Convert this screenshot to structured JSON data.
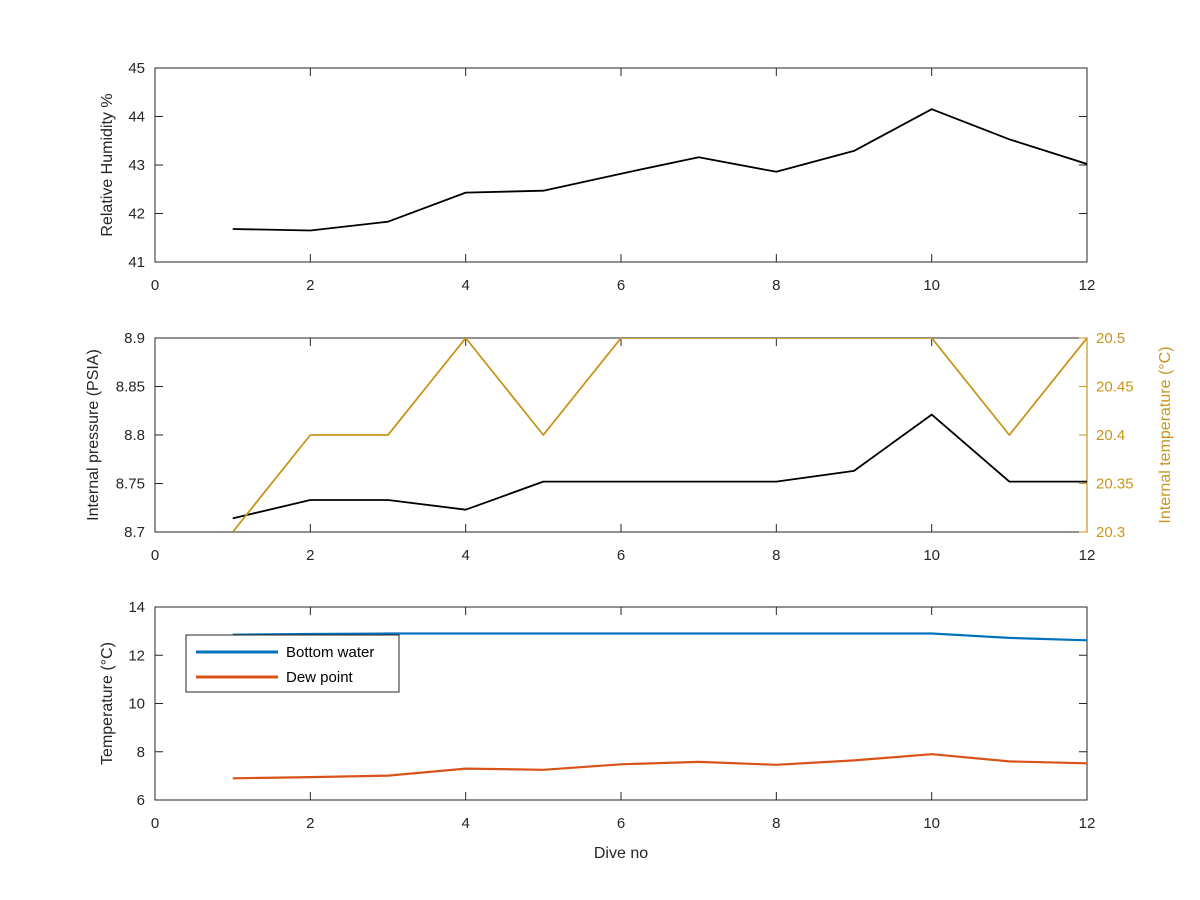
{
  "chart_data": [
    {
      "type": "line",
      "xlabel": "",
      "ylabel": "Relative Humidity %",
      "xlim": [
        0,
        12
      ],
      "ylim": [
        41,
        45
      ],
      "xticks": [
        "0",
        "2",
        "4",
        "6",
        "8",
        "10",
        "12"
      ],
      "yticks": [
        "41",
        "42",
        "43",
        "44",
        "45"
      ],
      "grid": false,
      "series": [
        {
          "color": "#000000",
          "x": [
            1,
            2,
            3,
            4,
            5,
            6,
            7,
            8,
            9,
            10,
            11,
            12
          ],
          "y": [
            41.68,
            41.65,
            41.83,
            42.43,
            42.47,
            42.82,
            43.16,
            42.86,
            43.29,
            44.15,
            43.53,
            43.02
          ]
        }
      ]
    },
    {
      "type": "line",
      "xlabel": "",
      "ylabel": "Internal pressure (PSIA)",
      "y2label": "Internal temperature (°C)",
      "xlim": [
        0,
        12
      ],
      "ylim": [
        8.7,
        8.9
      ],
      "y2lim": [
        20.3,
        20.5
      ],
      "xticks": [
        "0",
        "2",
        "4",
        "6",
        "8",
        "10",
        "12"
      ],
      "yticks": [
        "8.7",
        "8.75",
        "8.8",
        "8.85",
        "8.9"
      ],
      "y2ticks": [
        "20.3",
        "20.35",
        "20.4",
        "20.45",
        "20.5"
      ],
      "grid": false,
      "series": [
        {
          "axis": "left",
          "color": "#000000",
          "x": [
            1,
            2,
            3,
            4,
            5,
            6,
            7,
            8,
            9,
            10,
            11,
            12
          ],
          "y": [
            8.714,
            8.733,
            8.733,
            8.723,
            8.752,
            8.752,
            8.752,
            8.752,
            8.763,
            8.821,
            8.752,
            8.752
          ]
        },
        {
          "axis": "right",
          "color": "#C8961E",
          "x": [
            1,
            2,
            3,
            4,
            5,
            6,
            7,
            8,
            9,
            10,
            11,
            12
          ],
          "y": [
            20.3,
            20.4,
            20.4,
            20.5,
            20.4,
            20.5,
            20.5,
            20.5,
            20.5,
            20.5,
            20.4,
            20.5
          ]
        }
      ]
    },
    {
      "type": "line",
      "xlabel": "Dive no",
      "ylabel": "Temperature (°C)",
      "xlim": [
        0,
        12
      ],
      "ylim": [
        6,
        14
      ],
      "xticks": [
        "0",
        "2",
        "4",
        "6",
        "8",
        "10",
        "12"
      ],
      "yticks": [
        "6",
        "8",
        "10",
        "12",
        "14"
      ],
      "grid": false,
      "legend": "top-left",
      "series": [
        {
          "name": "Bottom water",
          "color": "#0072BD",
          "x": [
            1,
            2,
            3,
            4,
            5,
            6,
            7,
            8,
            9,
            10,
            11,
            12
          ],
          "y": [
            12.85,
            12.88,
            12.9,
            12.9,
            12.9,
            12.9,
            12.9,
            12.9,
            12.9,
            12.9,
            12.72,
            12.62
          ]
        },
        {
          "name": "Dew point",
          "color": "#D95319",
          "x": [
            1,
            2,
            3,
            4,
            5,
            6,
            7,
            8,
            9,
            10,
            11,
            12
          ],
          "y": [
            6.9,
            6.95,
            7.01,
            7.3,
            7.25,
            7.48,
            7.58,
            7.46,
            7.64,
            7.9,
            7.6,
            7.52
          ]
        }
      ]
    }
  ]
}
